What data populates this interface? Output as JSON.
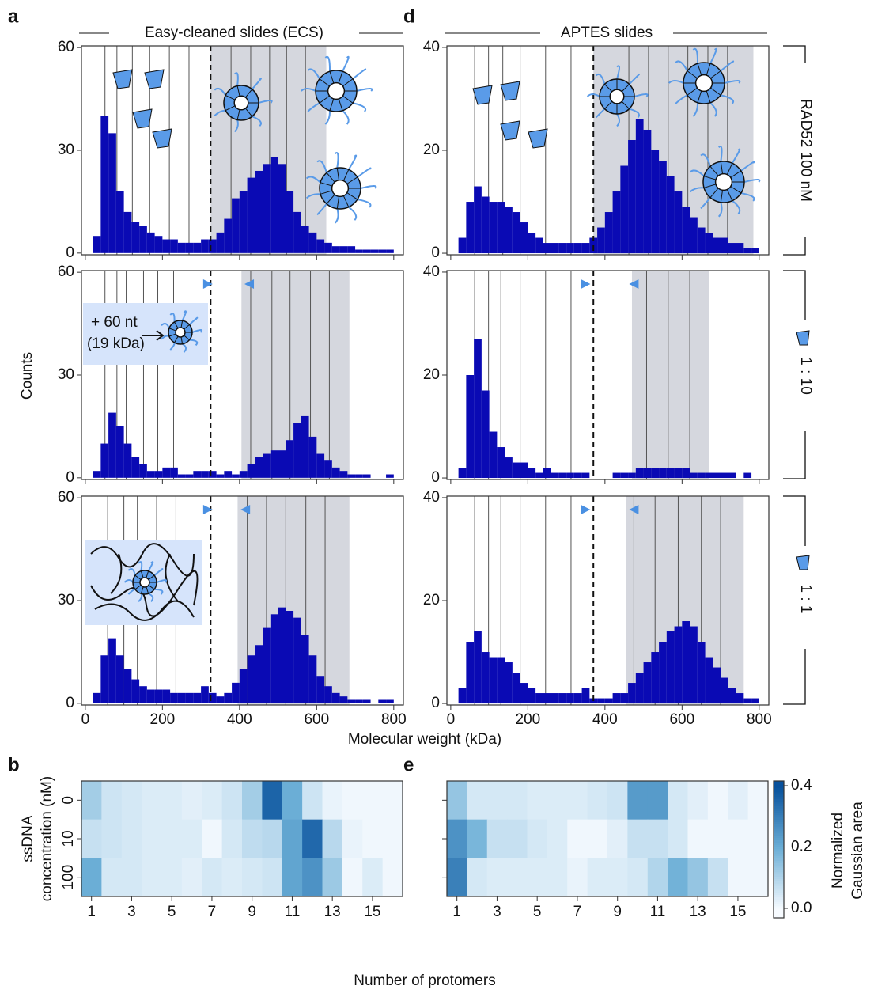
{
  "figure": {
    "panel_labels": [
      "a",
      "d",
      "b",
      "e"
    ],
    "column_titles": [
      "Easy-cleaned slides (ECS)",
      "APTES slides"
    ],
    "row_labels": [
      "RAD52 100 nM",
      "1 : 10",
      "1 : 1"
    ],
    "inset_labels": [
      "+ 60 nt",
      "(19 kDa)"
    ],
    "histogram_x_label": "Molecular weight (kDa)",
    "histogram_y_label": "Counts",
    "heatmap_x_label": "Number of protomers",
    "heatmap_y_label": [
      "ssDNA",
      "concentration (nM)"
    ],
    "colorbar": {
      "lim": [
        0,
        0.4
      ],
      "ticks": [
        {
          "value": 0,
          "label": "0.0"
        },
        0.2,
        0.4
      ],
      "label": [
        "Normalized",
        "Gaussian area"
      ],
      "colormap": [
        "#f7fbff",
        "#6baed6",
        "#08519c"
      ]
    }
  },
  "chart_data": [
    {
      "type": "histogram",
      "color": "#0a0ab4",
      "region_color": "#d5d7de",
      "bins": [
        0,
        20,
        40,
        60,
        80,
        100,
        120,
        140,
        160,
        180,
        200,
        220,
        240,
        260,
        280,
        300,
        320,
        340,
        360,
        380,
        400,
        420,
        440,
        460,
        480,
        500,
        520,
        540,
        560,
        580,
        600,
        620,
        640,
        660,
        680,
        700,
        720,
        740,
        760,
        780,
        800
      ],
      "counts": [
        0,
        5,
        40,
        35,
        18,
        12,
        9,
        8,
        6,
        5,
        4,
        4,
        3,
        3,
        3,
        4,
        4,
        6,
        10,
        16,
        18,
        22,
        24,
        26,
        28,
        26,
        18,
        12,
        8,
        6,
        4,
        3,
        2,
        2,
        2,
        1,
        1,
        1,
        1,
        1
      ],
      "region": [
        325,
        625
      ],
      "threshold": 325,
      "peaks": [
        51,
        82,
        122,
        167,
        218,
        269,
        378,
        429,
        478,
        522,
        571
      ],
      "xlim": [
        -10,
        825
      ],
      "xticks": [
        0,
        200,
        400,
        600,
        800
      ],
      "ylim": [
        -0.5,
        60.5
      ],
      "yticks": [
        0,
        30,
        60
      ]
    },
    {
      "type": "histogram",
      "color": "#0a0ab4",
      "region_color": "#d5d7de",
      "bins": [
        0,
        20,
        40,
        60,
        80,
        100,
        120,
        140,
        160,
        180,
        200,
        220,
        240,
        260,
        280,
        300,
        320,
        340,
        360,
        380,
        400,
        420,
        440,
        460,
        480,
        500,
        520,
        540,
        560,
        580,
        600,
        620,
        640,
        660,
        680,
        700,
        720,
        740,
        760,
        780,
        800
      ],
      "counts": [
        0,
        2,
        10,
        19,
        15,
        10,
        6,
        4,
        2,
        2,
        3,
        3,
        1,
        1,
        2,
        2,
        2,
        1,
        2,
        1,
        2,
        4,
        6,
        7,
        8,
        8,
        11,
        16,
        18,
        12,
        7,
        5,
        3,
        2,
        1,
        1,
        1,
        0,
        0,
        1
      ],
      "region": [
        405,
        685
      ],
      "threshold": 325,
      "markers": [
        318,
        425
      ],
      "peaks": [
        51,
        82,
        106,
        151,
        188,
        229,
        429,
        484,
        531,
        584,
        633
      ],
      "xlim": [
        -10,
        825
      ],
      "xticks": [
        0,
        200,
        400,
        600,
        800
      ],
      "ylim": [
        -0.5,
        60.5
      ],
      "yticks": [
        0,
        30,
        60
      ]
    },
    {
      "type": "histogram",
      "color": "#0a0ab4",
      "region_color": "#d5d7de",
      "bins": [
        0,
        20,
        40,
        60,
        80,
        100,
        120,
        140,
        160,
        180,
        200,
        220,
        240,
        260,
        280,
        300,
        320,
        340,
        360,
        380,
        400,
        420,
        440,
        460,
        480,
        500,
        520,
        540,
        560,
        580,
        600,
        620,
        640,
        660,
        680,
        700,
        720,
        740,
        760,
        780,
        800
      ],
      "counts": [
        0,
        3,
        14,
        19,
        14,
        10,
        7,
        5,
        4,
        4,
        4,
        3,
        3,
        3,
        3,
        5,
        3,
        2,
        3,
        6,
        10,
        14,
        17,
        22,
        26,
        28,
        27,
        25,
        20,
        14,
        8,
        5,
        3,
        2,
        1,
        1,
        1,
        0,
        1,
        1
      ],
      "region": [
        395,
        685
      ],
      "threshold": 325,
      "markers": [
        318,
        415
      ],
      "peaks": [
        58,
        100,
        135,
        185,
        235,
        420,
        470,
        520,
        572,
        622
      ],
      "xlim": [
        -10,
        825
      ],
      "xticks": [
        0,
        200,
        400,
        600,
        800
      ],
      "ylim": [
        -0.5,
        60.5
      ],
      "yticks": [
        0,
        30,
        60
      ]
    },
    {
      "type": "histogram",
      "color": "#0a0ab4",
      "region_color": "#d5d7de",
      "bins": [
        0,
        20,
        40,
        60,
        80,
        100,
        120,
        140,
        160,
        180,
        200,
        220,
        240,
        260,
        280,
        300,
        320,
        340,
        360,
        380,
        400,
        420,
        440,
        460,
        480,
        500,
        520,
        540,
        560,
        580,
        600,
        620,
        640,
        660,
        680,
        700,
        720,
        740,
        760,
        780,
        800
      ],
      "counts": [
        0,
        3,
        10,
        13,
        11,
        10,
        10,
        9,
        8,
        6,
        4,
        3,
        2,
        2,
        2,
        2,
        2,
        2,
        3,
        5,
        8,
        12,
        17,
        22,
        26,
        24,
        20,
        18,
        15,
        12,
        9,
        7,
        5,
        4,
        3,
        3,
        2,
        2,
        1,
        1
      ],
      "region": [
        370,
        785
      ],
      "threshold": 370,
      "peaks": [
        62,
        98,
        135,
        180,
        246,
        312,
        462,
        513,
        564,
        615,
        667,
        718
      ],
      "xlim": [
        -10,
        825
      ],
      "xticks": [
        0,
        200,
        400,
        600,
        800
      ],
      "ylim": [
        -0.3,
        40.3
      ],
      "yticks": [
        0,
        20,
        40
      ]
    },
    {
      "type": "histogram",
      "color": "#0a0ab4",
      "region_color": "#d5d7de",
      "bins": [
        0,
        20,
        40,
        60,
        80,
        100,
        120,
        140,
        160,
        180,
        200,
        220,
        240,
        260,
        280,
        300,
        320,
        340,
        360,
        380,
        400,
        420,
        440,
        460,
        480,
        500,
        520,
        540,
        560,
        580,
        600,
        620,
        640,
        660,
        680,
        700,
        720,
        740,
        760,
        780,
        800
      ],
      "counts": [
        0,
        2,
        20,
        27,
        17,
        9,
        6,
        4,
        3,
        3,
        2,
        1,
        2,
        1,
        1,
        1,
        1,
        1,
        0,
        0,
        0,
        1,
        1,
        1,
        2,
        2,
        2,
        2,
        2,
        2,
        2,
        1,
        1,
        1,
        1,
        1,
        1,
        0,
        1,
        0
      ],
      "region": [
        470,
        670
      ],
      "threshold": 370,
      "markers": [
        350,
        475
      ],
      "peaks": [
        62,
        98,
        130,
        180,
        246,
        312,
        508,
        564,
        620
      ],
      "xlim": [
        -10,
        825
      ],
      "xticks": [
        0,
        200,
        400,
        600,
        800
      ],
      "ylim": [
        -0.3,
        40.3
      ],
      "yticks": [
        0,
        20,
        40
      ]
    },
    {
      "type": "histogram",
      "color": "#0a0ab4",
      "region_color": "#d5d7de",
      "bins": [
        0,
        20,
        40,
        60,
        80,
        100,
        120,
        140,
        160,
        180,
        200,
        220,
        240,
        260,
        280,
        300,
        320,
        340,
        360,
        380,
        400,
        420,
        440,
        460,
        480,
        500,
        520,
        540,
        560,
        580,
        600,
        620,
        640,
        660,
        680,
        700,
        720,
        740,
        760,
        780,
        800
      ],
      "counts": [
        0,
        3,
        12,
        14,
        10,
        9,
        9,
        8,
        6,
        4,
        3,
        2,
        2,
        2,
        2,
        2,
        2,
        3,
        1,
        1,
        1,
        2,
        2,
        4,
        6,
        8,
        10,
        12,
        14,
        15,
        16,
        15,
        12,
        9,
        7,
        5,
        3,
        2,
        1,
        1
      ],
      "region": [
        455,
        760
      ],
      "threshold": 370,
      "markers": [
        350,
        475
      ],
      "peaks": [
        62,
        98,
        130,
        180,
        246,
        312,
        475,
        530,
        590,
        650,
        700
      ],
      "xlim": [
        -10,
        825
      ],
      "xticks": [
        0,
        200,
        400,
        600,
        800
      ],
      "ylim": [
        -0.3,
        40.3
      ],
      "yticks": [
        0,
        20,
        40
      ]
    },
    {
      "type": "heatmap",
      "x_categories": [
        "1",
        null,
        "3",
        null,
        "5",
        null,
        "7",
        null,
        "9",
        null,
        "11",
        null,
        "13",
        null,
        "15",
        null
      ],
      "y_categories": [
        "0",
        "10",
        "100"
      ],
      "values": [
        [
          0.12,
          0.06,
          0.05,
          0.04,
          0.04,
          0.03,
          0.04,
          0.06,
          0.12,
          0.36,
          0.2,
          0.06,
          0.02,
          0.01,
          0.01,
          0.01
        ],
        [
          0.07,
          0.06,
          0.05,
          0.04,
          0.04,
          0.04,
          0.01,
          0.05,
          0.08,
          0.09,
          0.22,
          0.35,
          0.09,
          0.02,
          0.01,
          0.01
        ],
        [
          0.2,
          0.05,
          0.05,
          0.04,
          0.04,
          0.03,
          0.05,
          0.04,
          0.05,
          0.06,
          0.22,
          0.26,
          0.13,
          0.01,
          0.04,
          0.01
        ]
      ]
    },
    {
      "type": "heatmap",
      "x_categories": [
        "1",
        null,
        "3",
        null,
        "5",
        null,
        "7",
        null,
        "9",
        null,
        "11",
        null,
        "13",
        null,
        "15",
        null
      ],
      "y_categories": [
        null,
        null,
        null
      ],
      "values": [
        [
          0.14,
          0.05,
          0.05,
          0.05,
          0.04,
          0.04,
          0.04,
          0.05,
          0.06,
          0.24,
          0.24,
          0.05,
          0.03,
          0.01,
          0.03,
          0.01
        ],
        [
          0.26,
          0.18,
          0.07,
          0.07,
          0.05,
          0.04,
          0.01,
          0.01,
          0.03,
          0.07,
          0.07,
          0.05,
          0.01,
          0.01,
          0.01,
          0.01
        ],
        [
          0.3,
          0.05,
          0.04,
          0.04,
          0.04,
          0.04,
          0.02,
          0.04,
          0.04,
          0.05,
          0.1,
          0.19,
          0.14,
          0.07,
          0.01,
          0.01
        ]
      ]
    }
  ]
}
